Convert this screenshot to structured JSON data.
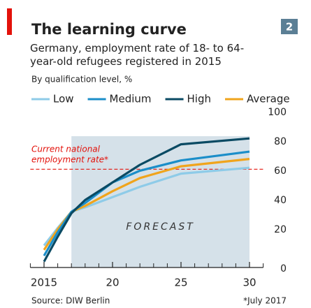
{
  "chart_data": {
    "type": "line",
    "chart_number": "2",
    "title": "The learning curve",
    "subtitle": "Germany, employment rate of 18- to 64-year-old refugees registered in 2015",
    "unit_note": "By qualification level, %",
    "source": "Source: DIW Berlin",
    "footnote": "*July 2017",
    "x": [
      2015,
      2016,
      2017,
      2018,
      2020,
      2022,
      2025,
      2030
    ],
    "series": [
      {
        "name": "Low",
        "color": "#8ecbe8",
        "values": [
          15,
          27,
          38,
          41,
          48,
          55,
          64,
          68
        ]
      },
      {
        "name": "Medium",
        "color": "#1b8ec9",
        "values": [
          8,
          24,
          38,
          44,
          58,
          66,
          73,
          79
        ]
      },
      {
        "name": "High",
        "color": "#0a4a63",
        "values": [
          4,
          21,
          37,
          46,
          58,
          70,
          84,
          88
        ]
      },
      {
        "name": "Average",
        "color": "#f0a41c",
        "values": [
          12,
          26,
          38,
          42,
          52,
          61,
          69,
          74
        ]
      }
    ],
    "reference_line": {
      "label_lines": [
        "Current national",
        "employment rate*"
      ],
      "value": 67,
      "color": "#e3120b"
    },
    "forecast": {
      "label": "FORECAST",
      "span": [
        2017,
        2030
      ]
    },
    "xlim": [
      2014,
      2031
    ],
    "xticks": [
      2015,
      {
        "value": 2020,
        "label": "20"
      },
      {
        "value": 2025,
        "label": "25"
      },
      {
        "value": 2030,
        "label": "30"
      }
    ],
    "ylim": [
      0,
      100
    ],
    "yticks": [
      0,
      20,
      40,
      60,
      80,
      100
    ]
  }
}
